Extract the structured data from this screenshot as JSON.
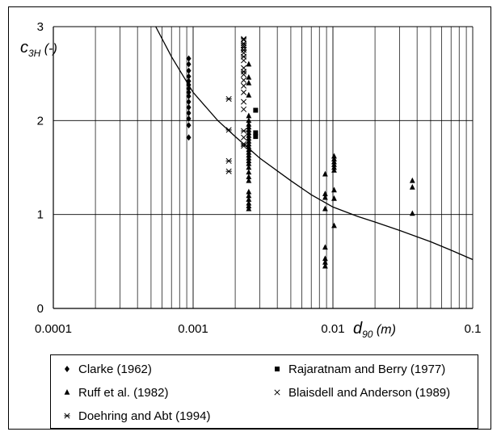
{
  "chart_data": {
    "type": "scatter",
    "xscale": "log",
    "xlim": [
      0.0001,
      0.1
    ],
    "ylim": [
      0,
      3
    ],
    "grid": true,
    "legend_position": "bottom",
    "x_ticks": [
      "0.0001",
      "0.001",
      "0.01",
      "0.1"
    ],
    "y_ticks": [
      "0",
      "1",
      "2",
      "3"
    ],
    "xlabel": {
      "main": "d",
      "sub": "90",
      "unit": " (m)"
    },
    "ylabel": {
      "main": "c",
      "sub": "3H",
      "unit": " (-)"
    },
    "series": [
      {
        "name": "Clarke (1962)",
        "marker": "diamond",
        "points": [
          [
            0.00093,
            1.82
          ],
          [
            0.00093,
            1.95
          ],
          [
            0.00093,
            2.02
          ],
          [
            0.00093,
            2.08
          ],
          [
            0.00093,
            2.14
          ],
          [
            0.00093,
            2.2
          ],
          [
            0.00093,
            2.26
          ],
          [
            0.00093,
            2.3
          ],
          [
            0.00093,
            2.34
          ],
          [
            0.00093,
            2.38
          ],
          [
            0.00093,
            2.42
          ],
          [
            0.00093,
            2.47
          ],
          [
            0.00093,
            2.53
          ],
          [
            0.00093,
            2.6
          ],
          [
            0.00093,
            2.66
          ]
        ]
      },
      {
        "name": "Rajaratnam and Berry (1977)",
        "marker": "square",
        "points": [
          [
            0.0028,
            2.11
          ],
          [
            0.0028,
            1.87
          ],
          [
            0.0028,
            1.83
          ]
        ]
      },
      {
        "name": "Ruff et al. (1982)",
        "marker": "triangle",
        "points": [
          [
            0.0025,
            2.6
          ],
          [
            0.0025,
            2.46
          ],
          [
            0.0025,
            2.4
          ],
          [
            0.0025,
            2.27
          ],
          [
            0.0025,
            2.05
          ],
          [
            0.0025,
            2.0
          ],
          [
            0.0025,
            1.96
          ],
          [
            0.0025,
            1.93
          ],
          [
            0.0025,
            1.9
          ],
          [
            0.0025,
            1.87
          ],
          [
            0.0025,
            1.84
          ],
          [
            0.0025,
            1.81
          ],
          [
            0.0025,
            1.78
          ],
          [
            0.0025,
            1.75
          ],
          [
            0.0025,
            1.72
          ],
          [
            0.0025,
            1.69
          ],
          [
            0.0025,
            1.66
          ],
          [
            0.0025,
            1.63
          ],
          [
            0.0025,
            1.6
          ],
          [
            0.0025,
            1.57
          ],
          [
            0.0025,
            1.54
          ],
          [
            0.0025,
            1.5
          ],
          [
            0.0025,
            1.45
          ],
          [
            0.0025,
            1.4
          ],
          [
            0.0025,
            1.36
          ],
          [
            0.0025,
            1.24
          ],
          [
            0.0025,
            1.2
          ],
          [
            0.0025,
            1.16
          ],
          [
            0.0025,
            1.12
          ],
          [
            0.0025,
            1.09
          ],
          [
            0.0025,
            1.06
          ],
          [
            0.0088,
            1.43
          ],
          [
            0.0088,
            1.22
          ],
          [
            0.0088,
            1.18
          ],
          [
            0.0088,
            1.06
          ],
          [
            0.0088,
            0.65
          ],
          [
            0.0088,
            0.53
          ],
          [
            0.0088,
            0.49
          ],
          [
            0.0088,
            0.45
          ],
          [
            0.0102,
            1.62
          ],
          [
            0.0102,
            1.59
          ],
          [
            0.0102,
            1.56
          ],
          [
            0.0102,
            1.53
          ],
          [
            0.0102,
            1.5
          ],
          [
            0.0102,
            1.47
          ],
          [
            0.0102,
            1.26
          ],
          [
            0.0102,
            1.17
          ],
          [
            0.0102,
            0.88
          ],
          [
            0.037,
            1.36
          ],
          [
            0.037,
            1.29
          ],
          [
            0.037,
            1.01
          ]
        ]
      },
      {
        "name": "Blaisdell and Anderson (1989)",
        "marker": "x",
        "points": [
          [
            0.0023,
            2.86
          ],
          [
            0.0023,
            2.8
          ],
          [
            0.0023,
            2.72
          ],
          [
            0.0023,
            2.64
          ],
          [
            0.0023,
            2.56
          ],
          [
            0.0023,
            2.49
          ],
          [
            0.0023,
            2.43
          ],
          [
            0.0023,
            2.37
          ],
          [
            0.0023,
            2.3
          ],
          [
            0.0023,
            2.2
          ],
          [
            0.0023,
            2.12
          ],
          [
            0.0023,
            1.82
          ]
        ]
      },
      {
        "name": "Doehring and Abt (1994)",
        "marker": "asterisk",
        "points": [
          [
            0.0018,
            2.23
          ],
          [
            0.0018,
            1.9
          ],
          [
            0.0018,
            1.57
          ],
          [
            0.0018,
            1.46
          ],
          [
            0.0023,
            2.87
          ],
          [
            0.0023,
            2.82
          ],
          [
            0.0023,
            2.78
          ],
          [
            0.0023,
            2.75
          ],
          [
            0.0023,
            2.68
          ],
          [
            0.0023,
            2.52
          ],
          [
            0.0023,
            1.89
          ],
          [
            0.0023,
            1.75
          ],
          [
            0.0023,
            1.73
          ]
        ]
      }
    ],
    "curve": {
      "points": [
        [
          0.00054,
          3.0
        ],
        [
          0.0007,
          2.68
        ],
        [
          0.001,
          2.3
        ],
        [
          0.0015,
          2.0
        ],
        [
          0.002,
          1.83
        ],
        [
          0.003,
          1.6
        ],
        [
          0.005,
          1.36
        ],
        [
          0.007,
          1.21
        ],
        [
          0.01,
          1.08
        ],
        [
          0.015,
          0.98
        ],
        [
          0.02,
          0.92
        ],
        [
          0.03,
          0.83
        ],
        [
          0.05,
          0.71
        ],
        [
          0.07,
          0.62
        ],
        [
          0.1,
          0.52
        ]
      ]
    }
  }
}
